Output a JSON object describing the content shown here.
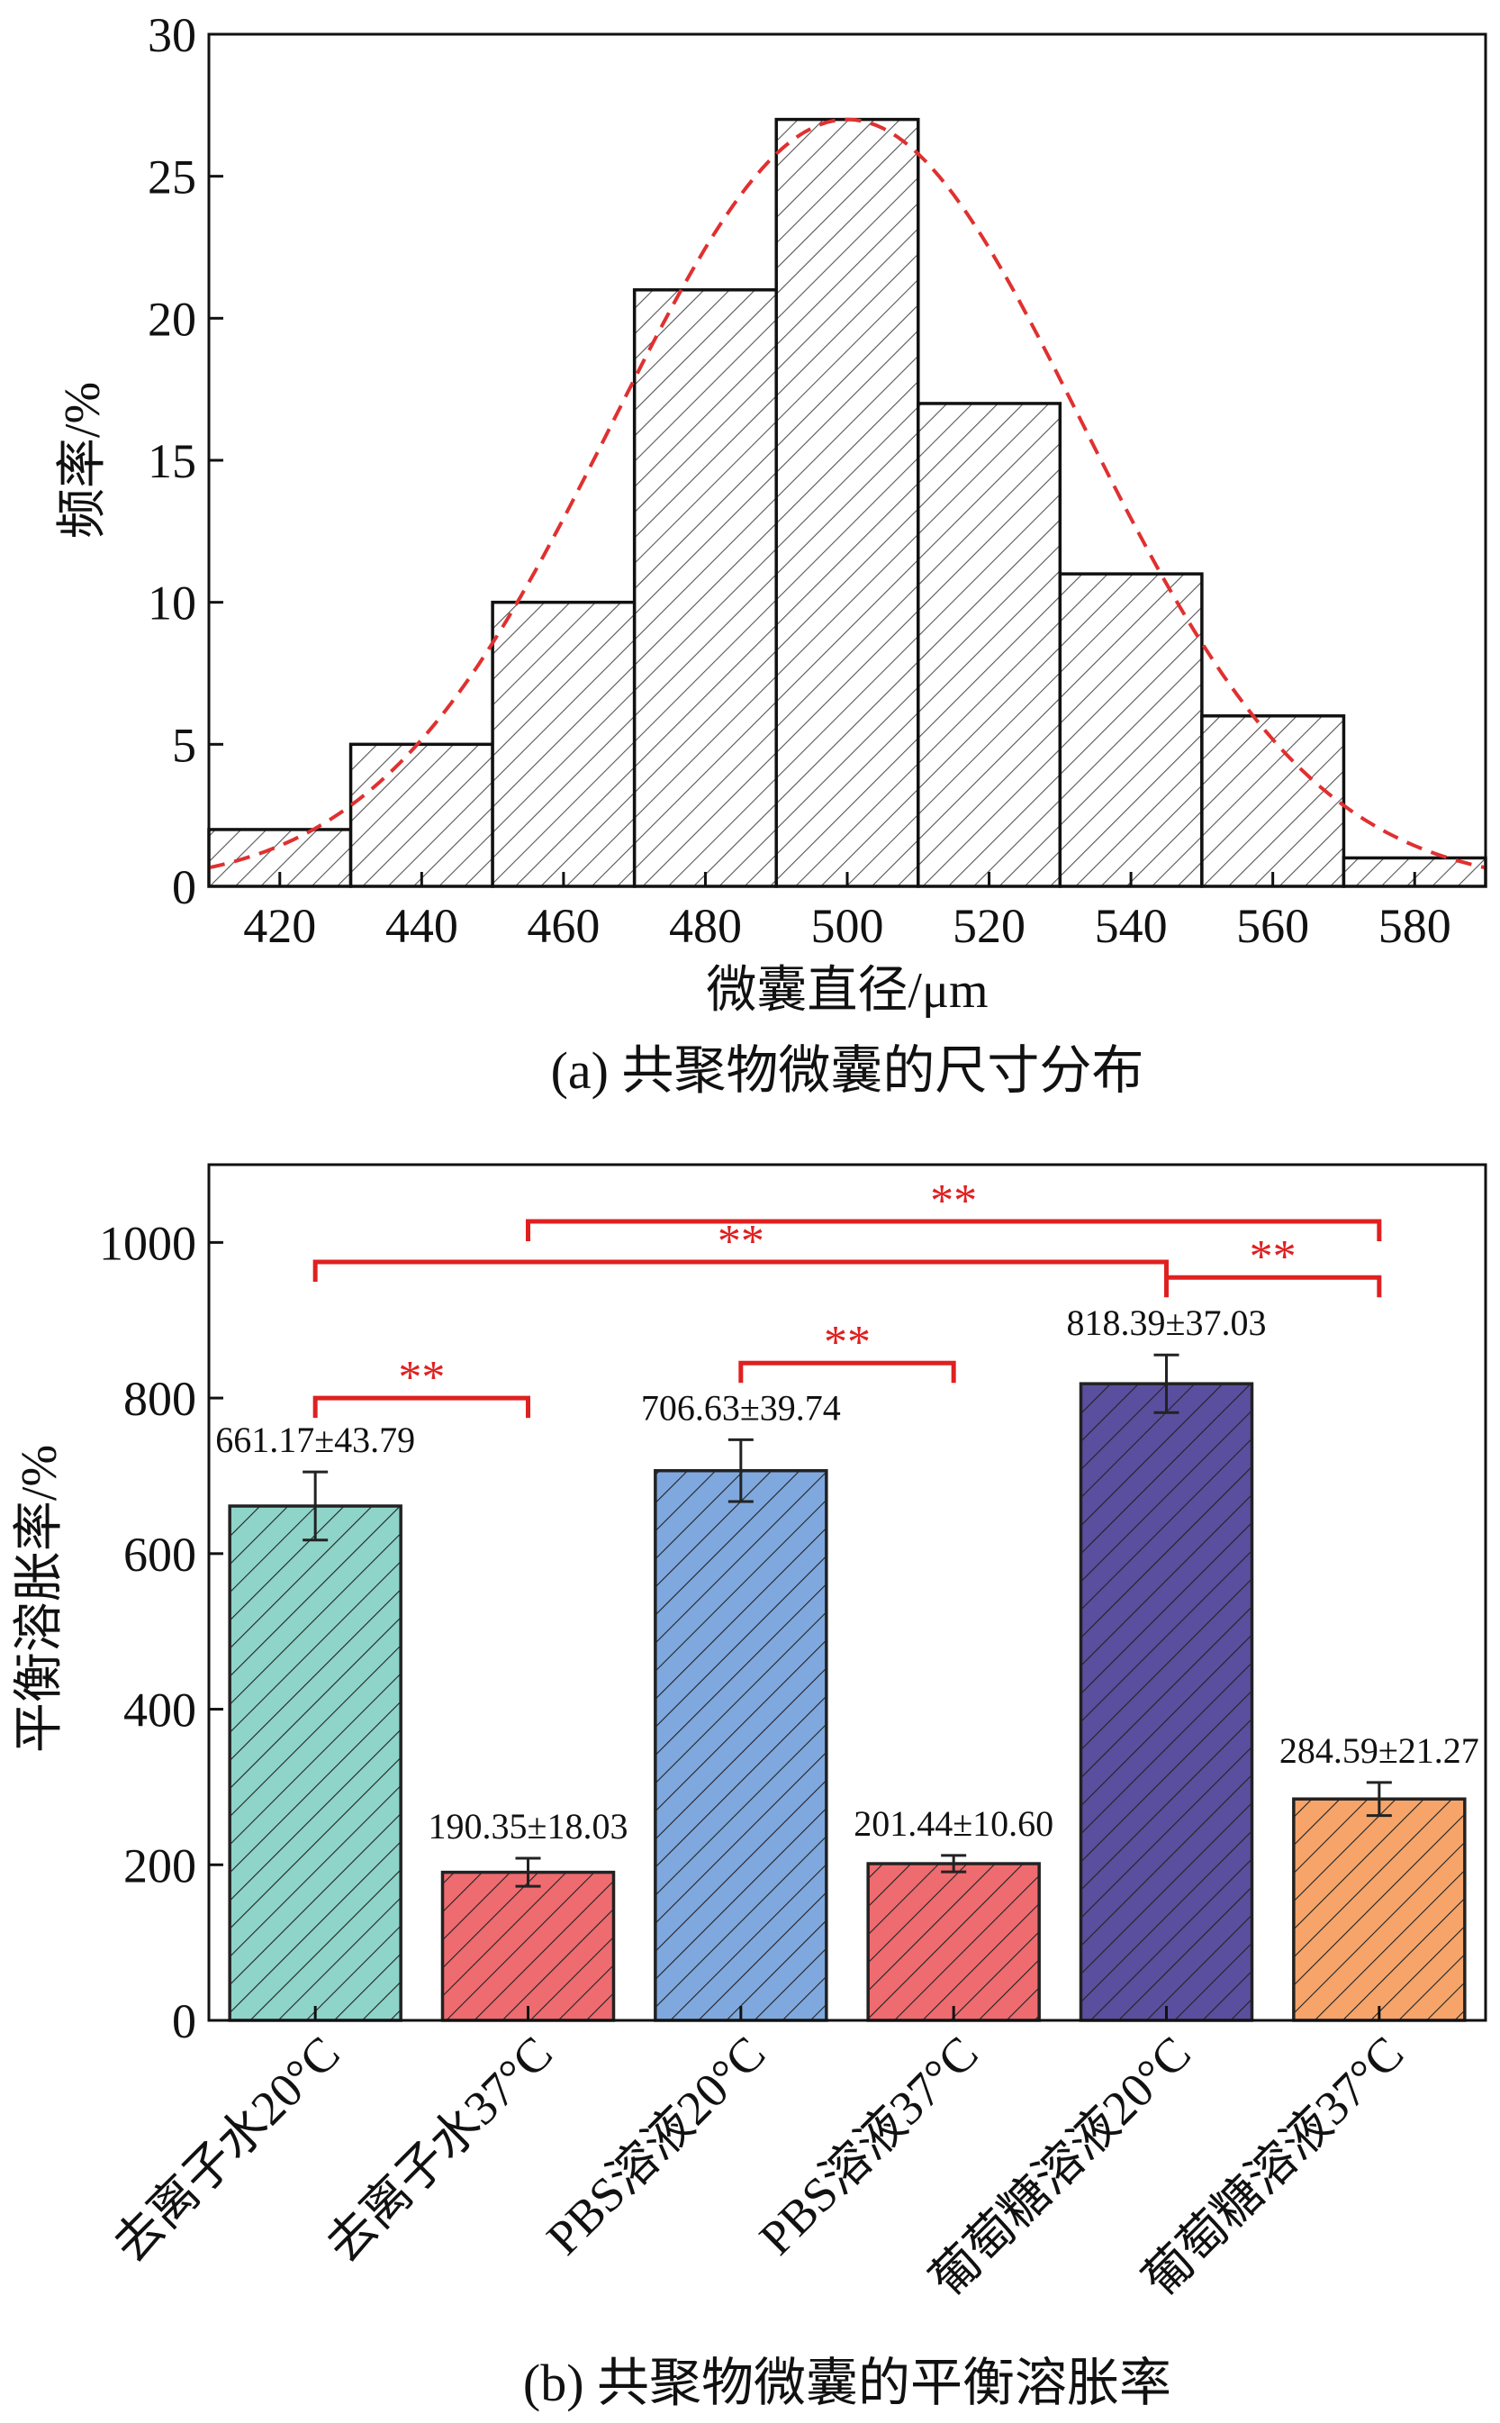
{
  "chart_data": [
    {
      "type": "bar",
      "title": "(a) 共聚物微囊的尺寸分布",
      "xlabel": "微囊直径/μm",
      "ylabel": "频率/%",
      "xlim": [
        410,
        590
      ],
      "ylim": [
        0,
        30
      ],
      "xticks": [
        420,
        440,
        460,
        480,
        500,
        520,
        540,
        560,
        580
      ],
      "yticks": [
        0,
        5,
        10,
        15,
        20,
        25,
        30
      ],
      "bins": [
        {
          "from": 410,
          "to": 430,
          "value": 2
        },
        {
          "from": 430,
          "to": 450,
          "value": 5
        },
        {
          "from": 450,
          "to": 470,
          "value": 10
        },
        {
          "from": 470,
          "to": 490,
          "value": 21
        },
        {
          "from": 490,
          "to": 510,
          "value": 27
        },
        {
          "from": 510,
          "to": 530,
          "value": 17
        },
        {
          "from": 530,
          "to": 550,
          "value": 11
        },
        {
          "from": 550,
          "to": 570,
          "value": 6
        },
        {
          "from": 570,
          "to": 590,
          "value": 1
        }
      ],
      "fit_curve": {
        "type": "normal",
        "mean": 500,
        "sd": 33,
        "peak": 27,
        "color": "#e03030",
        "style": "dashed"
      },
      "bar_fill": "#ffffff",
      "hatch_color": "#555555",
      "edge_color": "#111111"
    },
    {
      "type": "bar",
      "title": "(b) 共聚物微囊的平衡溶胀率",
      "xlabel": "",
      "ylabel": "平衡溶胀率/%",
      "ylim": [
        0,
        1100
      ],
      "yticks": [
        0,
        200,
        400,
        600,
        800,
        1000
      ],
      "categories": [
        "去离子水20°C",
        "去离子水37°C",
        "PBS溶液20°C",
        "PBS溶液37°C",
        "葡萄糖溶液20°C",
        "葡萄糖溶液37°C"
      ],
      "values": [
        661.17,
        190.35,
        706.63,
        201.44,
        818.39,
        284.59
      ],
      "errors": [
        43.79,
        18.03,
        39.74,
        10.6,
        37.03,
        21.27
      ],
      "value_labels": [
        "661.17±43.79",
        "190.35±18.03",
        "706.63±39.74",
        "201.44±10.60",
        "818.39±37.03",
        "284.59±21.27"
      ],
      "colors": [
        "#8ed4c9",
        "#ee6b70",
        "#7fa8de",
        "#ee6b70",
        "#5a4e9e",
        "#f6a46a"
      ],
      "significance": [
        {
          "from": 0,
          "to": 1,
          "label": "**",
          "y": 800
        },
        {
          "from": 2,
          "to": 3,
          "label": "**",
          "y": 845
        },
        {
          "from": 4,
          "to": 5,
          "label": "**",
          "y": 955
        },
        {
          "from": 0,
          "to": 4,
          "label": "**",
          "y": 975
        },
        {
          "from": 1,
          "to": 5,
          "label": "**",
          "y": 1027
        }
      ],
      "significance_color": "#e02020"
    }
  ]
}
